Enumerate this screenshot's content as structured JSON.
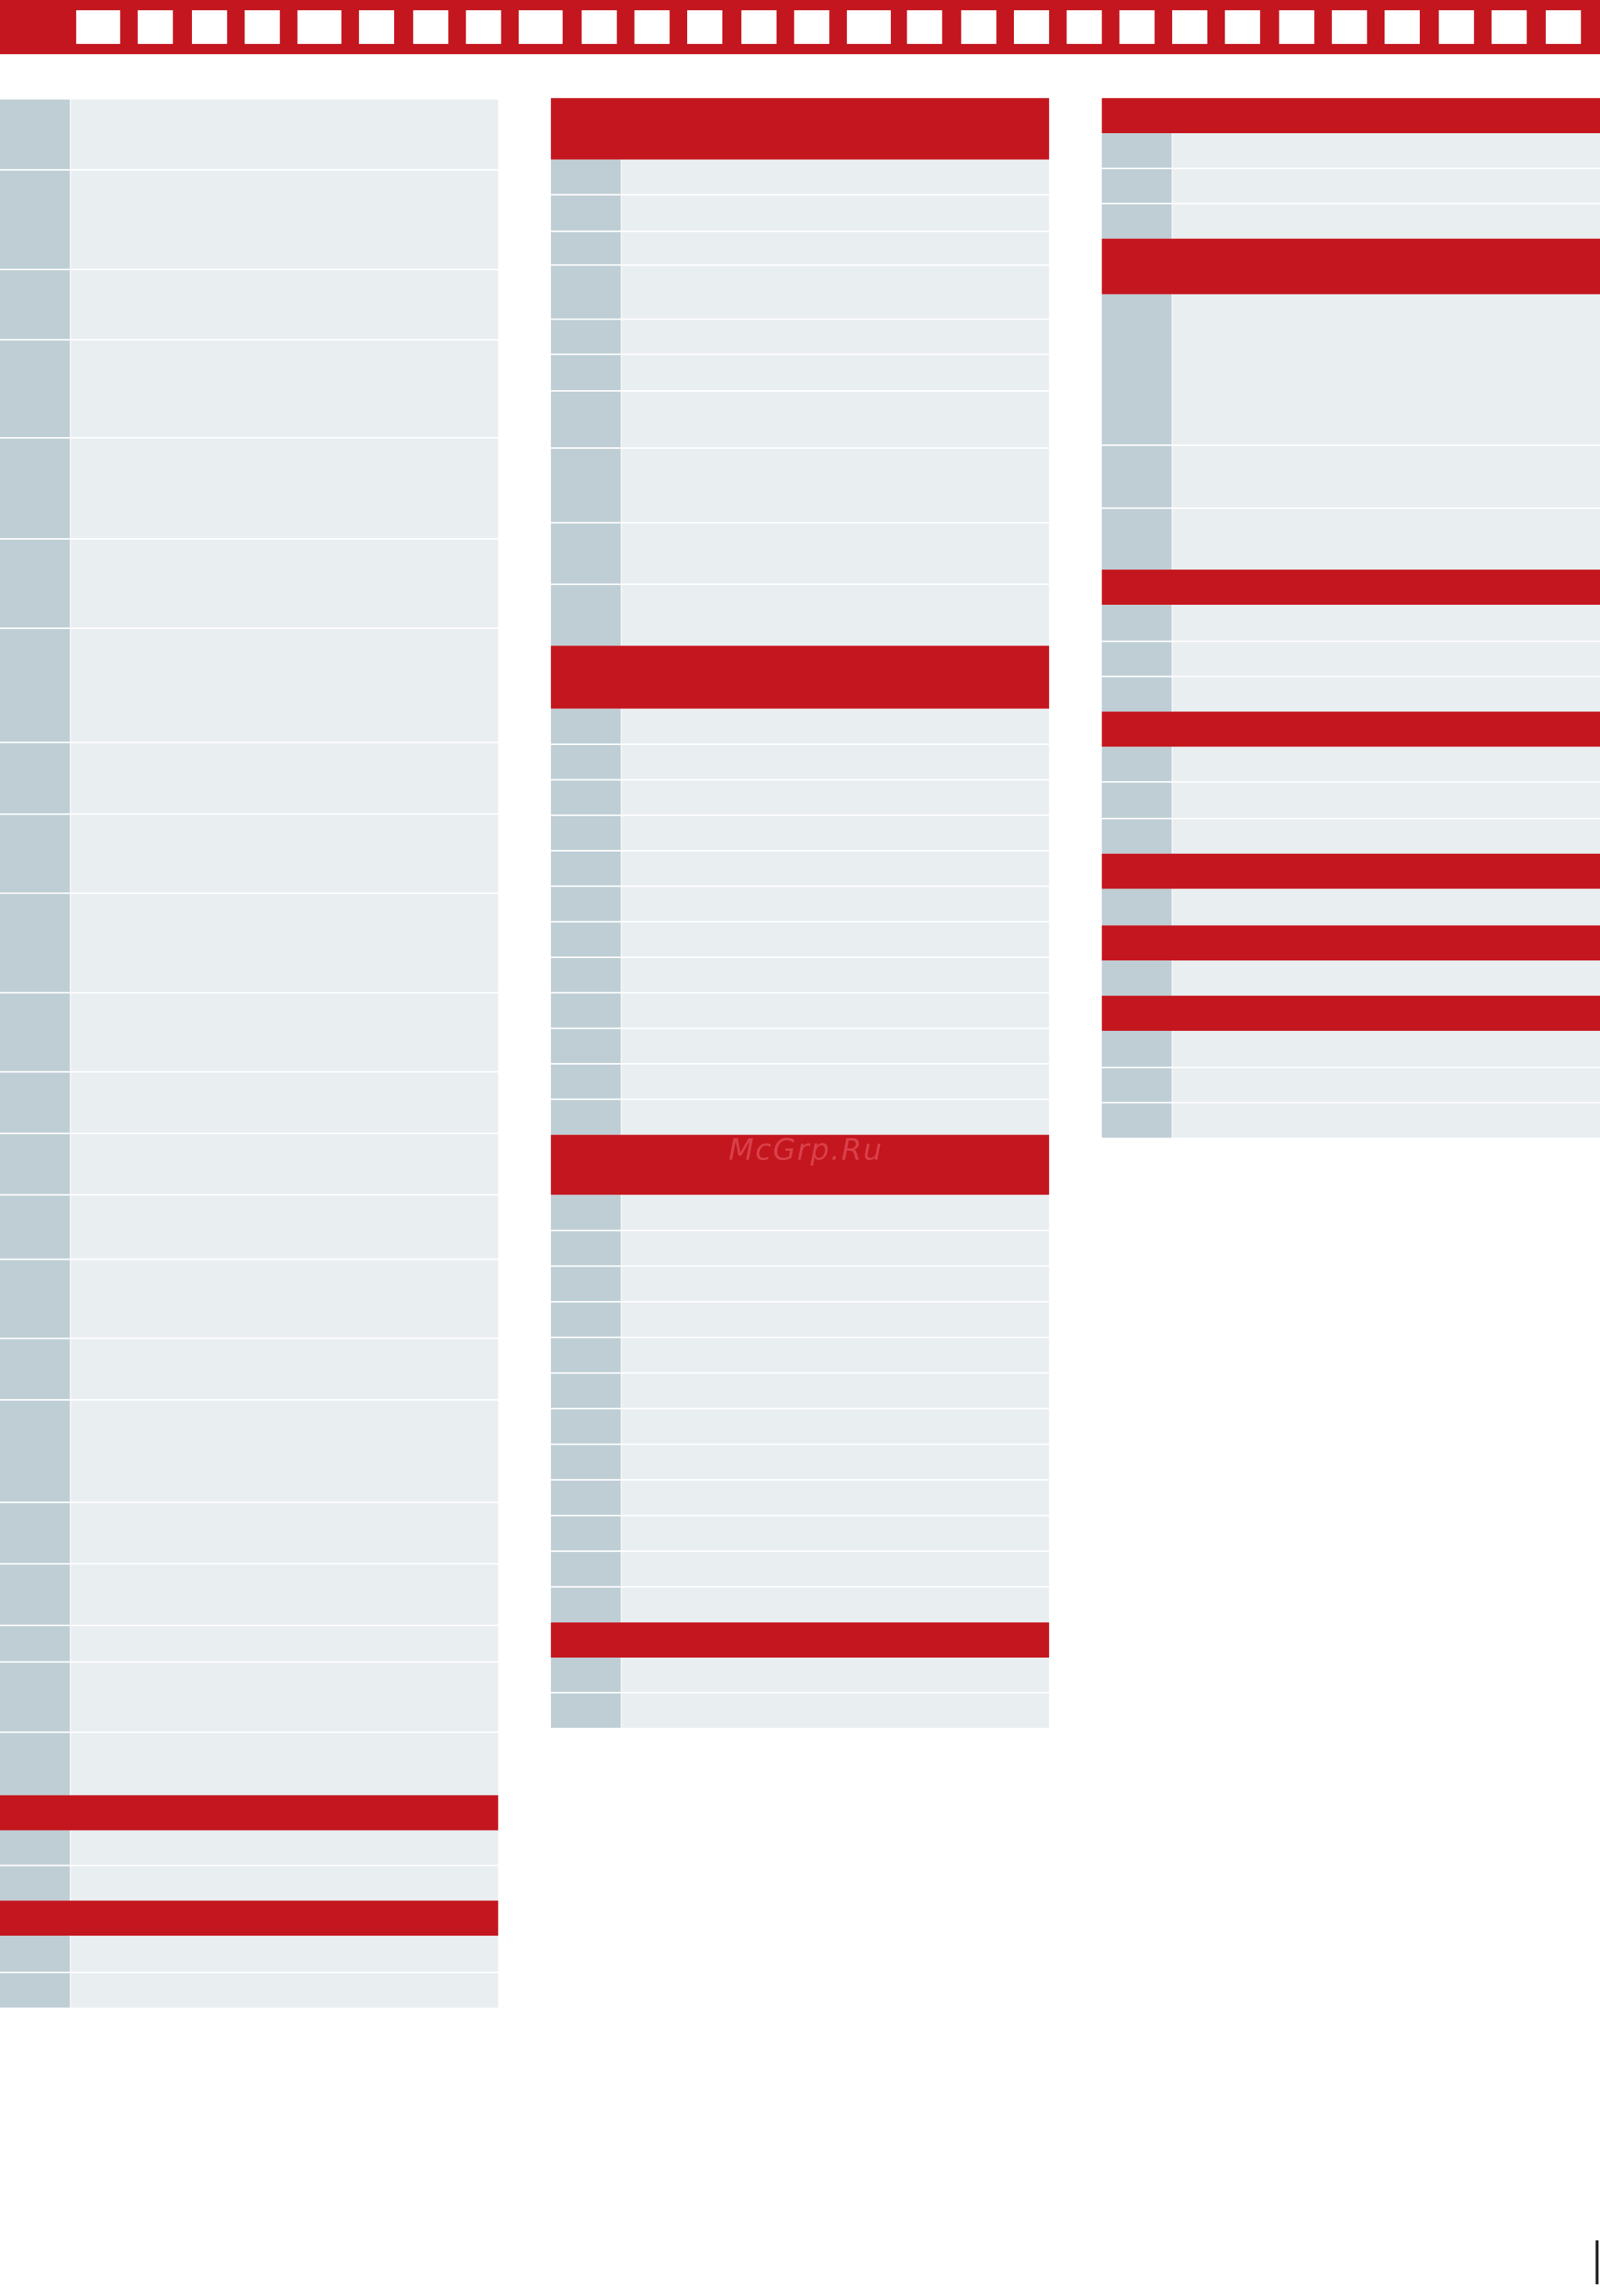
{
  "watermark": "McGrp.Ru"
}
